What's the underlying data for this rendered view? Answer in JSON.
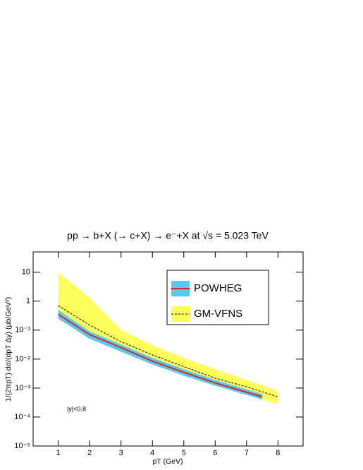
{
  "chart_data": {
    "type": "band-line",
    "title": "pp → b+X (→ c+X) → e⁻+X at √s = 5.023 TeV",
    "x_label": "pT (GeV)",
    "y_label": "1/(2πpT) dσ/(dpT Δy) (μb/GeV²)",
    "annotation": "|y|<0.8",
    "log_y": true,
    "xlim": [
      0.2,
      8.8
    ],
    "xticks": [
      1,
      2,
      3,
      4,
      5,
      6,
      7,
      8
    ],
    "ylim": [
      1e-05,
      50
    ],
    "yticks": [
      {
        "value": 1e-05,
        "label": "10⁻⁵"
      },
      {
        "value": 0.0001,
        "label": "10⁻⁴"
      },
      {
        "value": 0.001,
        "label": "10⁻³"
      },
      {
        "value": 0.01,
        "label": "10⁻²"
      },
      {
        "value": 0.1,
        "label": "10⁻¹"
      },
      1,
      10
    ],
    "series": [
      {
        "name": "GM-VFNS",
        "color": "#ffff5c",
        "line_color": "#000000",
        "dashed": true,
        "x": [
          1,
          2,
          3,
          4,
          5,
          6,
          7,
          8
        ],
        "values": [
          0.7,
          0.15,
          0.04,
          0.014,
          0.0055,
          0.0022,
          0.0011,
          0.0005
        ],
        "low": [
          0.25,
          0.06,
          0.018,
          0.007,
          0.003,
          0.0012,
          0.0006,
          0.00028
        ],
        "high": [
          10,
          1.3,
          0.1,
          0.03,
          0.011,
          0.0045,
          0.0019,
          0.0008
        ]
      },
      {
        "name": "POWHEG",
        "color": "#5bc8f0",
        "line_color": "#d62728",
        "dashed": false,
        "x": [
          1,
          2,
          3,
          4,
          5,
          6,
          7,
          7.5
        ],
        "values": [
          0.35,
          0.07,
          0.025,
          0.0085,
          0.0035,
          0.0015,
          0.00072,
          0.0005
        ],
        "low": [
          0.25,
          0.05,
          0.018,
          0.0065,
          0.0027,
          0.0012,
          0.00058,
          0.0004
        ],
        "high": [
          0.5,
          0.09,
          0.032,
          0.011,
          0.0045,
          0.0019,
          0.0009,
          0.00062
        ]
      }
    ]
  }
}
